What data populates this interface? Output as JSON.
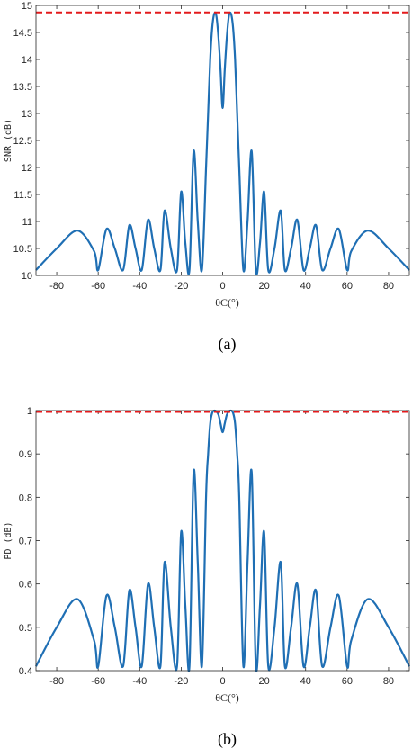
{
  "chart_data": [
    {
      "type": "line",
      "caption": "(a)",
      "xlabel": "θC(°)",
      "ylabel": "SNR (dB)",
      "xlim": [
        -90,
        90
      ],
      "ylim": [
        10,
        15
      ],
      "xticks": [
        "-80",
        "-60",
        "-40",
        "-20",
        "0",
        "20",
        "40",
        "60",
        "80"
      ],
      "yticks": [
        "10",
        "10.5",
        "11",
        "11.5",
        "12",
        "12.5",
        "13",
        "13.5",
        "14",
        "14.5",
        "15"
      ],
      "reference_line": {
        "y": 14.87,
        "color": "#e31a1c",
        "style": "dashed"
      },
      "series": [
        {
          "color": "#1f6fb4",
          "x": [
            -90,
            -80,
            -70,
            -62,
            -60,
            -56,
            -52,
            -48,
            -45,
            -42,
            -39,
            -36,
            -33,
            -30,
            -28,
            -25,
            -22,
            -20,
            -18,
            -16,
            -14,
            -12,
            -10,
            -8,
            -7,
            -6,
            -5,
            -4,
            -3,
            -2,
            -1,
            0,
            1,
            2,
            3,
            4,
            5,
            6,
            7,
            8,
            10,
            12,
            14,
            16,
            18,
            20,
            22,
            25,
            28,
            30,
            33,
            36,
            39,
            42,
            45,
            48,
            52,
            56,
            60,
            62,
            70,
            80,
            90
          ],
          "y": [
            10.1,
            10.5,
            10.83,
            10.45,
            10.1,
            10.86,
            10.5,
            10.1,
            10.93,
            10.5,
            10.1,
            11.03,
            10.5,
            10.1,
            11.2,
            10.5,
            10.1,
            11.55,
            10.6,
            10.1,
            12.3,
            11.0,
            10.1,
            12.0,
            13.0,
            14.0,
            14.6,
            14.85,
            14.8,
            14.4,
            13.8,
            13.1,
            13.8,
            14.4,
            14.8,
            14.85,
            14.6,
            14.0,
            13.0,
            12.0,
            10.1,
            11.0,
            12.3,
            10.1,
            10.6,
            11.55,
            10.1,
            10.5,
            11.2,
            10.1,
            10.5,
            11.03,
            10.1,
            10.5,
            10.93,
            10.1,
            10.5,
            10.86,
            10.1,
            10.45,
            10.83,
            10.5,
            10.1
          ]
        }
      ]
    },
    {
      "type": "line",
      "caption": "(b)",
      "xlabel": "θC(°)",
      "ylabel": "PD (dB)",
      "xlim": [
        -90,
        90
      ],
      "ylim": [
        0.4,
        1.0
      ],
      "xticks": [
        "-80",
        "-60",
        "-40",
        "-20",
        "0",
        "20",
        "40",
        "60",
        "80"
      ],
      "yticks": [
        "0.4",
        "0.5",
        "0.6",
        "0.7",
        "0.8",
        "0.9",
        "1"
      ],
      "reference_line": {
        "y": 0.997,
        "color": "#e31a1c",
        "style": "dashed"
      },
      "series": [
        {
          "color": "#1f6fb4",
          "x": [
            -90,
            -80,
            -70,
            -62,
            -60,
            -56,
            -52,
            -48,
            -45,
            -42,
            -39,
            -36,
            -33,
            -30,
            -28,
            -25,
            -22,
            -20,
            -18,
            -16,
            -14,
            -12,
            -10,
            -8,
            -7,
            -6,
            -5,
            -4,
            -3,
            -2,
            -1,
            0,
            1,
            2,
            3,
            4,
            5,
            6,
            7,
            8,
            10,
            12,
            14,
            16,
            18,
            20,
            22,
            25,
            28,
            30,
            33,
            36,
            39,
            42,
            45,
            48,
            52,
            56,
            60,
            62,
            70,
            80,
            90
          ],
          "y": [
            0.41,
            0.5,
            0.565,
            0.47,
            0.41,
            0.573,
            0.5,
            0.41,
            0.585,
            0.5,
            0.41,
            0.6,
            0.5,
            0.41,
            0.65,
            0.5,
            0.41,
            0.72,
            0.55,
            0.41,
            0.858,
            0.65,
            0.41,
            0.8,
            0.9,
            0.97,
            0.995,
            1.0,
            0.998,
            0.99,
            0.97,
            0.95,
            0.97,
            0.99,
            0.998,
            1.0,
            0.995,
            0.97,
            0.9,
            0.8,
            0.41,
            0.65,
            0.858,
            0.41,
            0.55,
            0.72,
            0.41,
            0.5,
            0.65,
            0.41,
            0.5,
            0.6,
            0.41,
            0.5,
            0.585,
            0.41,
            0.5,
            0.573,
            0.41,
            0.47,
            0.565,
            0.5,
            0.41
          ]
        }
      ]
    }
  ]
}
